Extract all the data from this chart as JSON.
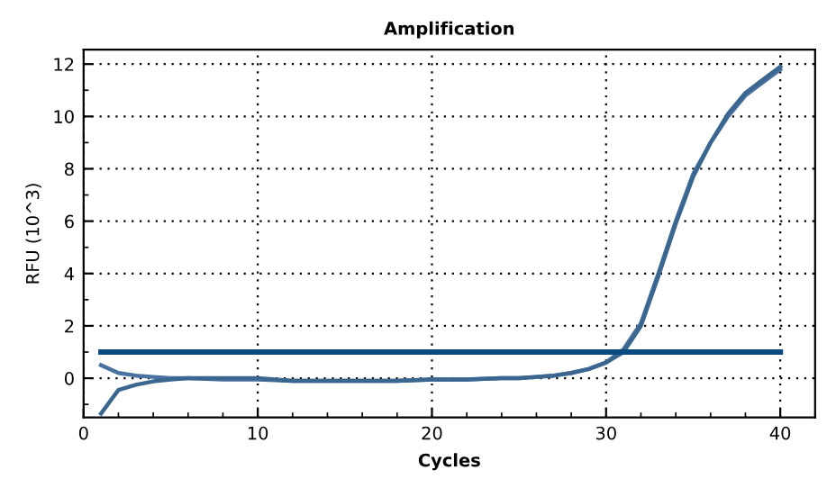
{
  "chart_data": {
    "type": "line",
    "title": "Amplification",
    "xlabel": "Cycles",
    "ylabel": "RFU (10^3)",
    "xlim": [
      0,
      42
    ],
    "ylim": [
      -1.5,
      12.55
    ],
    "xticks": [
      0,
      10,
      20,
      30,
      40
    ],
    "yticks": [
      0,
      2,
      4,
      6,
      8,
      10,
      12
    ],
    "grid": true,
    "marker": "none",
    "line_style": "solid",
    "series": [
      {
        "color": "#4a72a0",
        "x": [
          1,
          2,
          3,
          4,
          5,
          6,
          8,
          10,
          12,
          14,
          16,
          18,
          20,
          22,
          24,
          25,
          26,
          27,
          28,
          29,
          30,
          31,
          32,
          33,
          34,
          35,
          36,
          37,
          38,
          39,
          40
        ],
        "values": [
          0.5,
          0.2,
          0.1,
          0.05,
          0,
          0,
          -0.05,
          -0.05,
          -0.1,
          -0.1,
          -0.1,
          -0.1,
          -0.05,
          -0.05,
          0,
          0,
          0.05,
          0.1,
          0.2,
          0.35,
          0.6,
          1.1,
          2.1,
          4.0,
          6.0,
          7.8,
          9.0,
          10.0,
          10.8,
          11.3,
          11.8
        ]
      },
      {
        "color": "#3a6690",
        "x": [
          1,
          2,
          3,
          4,
          5,
          6,
          8,
          10,
          12,
          14,
          16,
          18,
          20,
          22,
          24,
          25,
          26,
          27,
          28,
          29,
          30,
          31,
          32,
          33,
          34,
          35,
          36,
          37,
          38,
          39,
          40
        ],
        "values": [
          -1.35,
          -0.45,
          -0.25,
          -0.12,
          -0.05,
          0,
          0,
          0,
          -0.1,
          -0.1,
          -0.1,
          -0.1,
          -0.05,
          -0.05,
          0,
          0,
          0.05,
          0.1,
          0.2,
          0.35,
          0.6,
          1.0,
          2.0,
          3.9,
          5.9,
          7.7,
          9.0,
          10.1,
          10.9,
          11.4,
          11.9
        ]
      },
      {
        "color": "#0a4a80",
        "x": [
          1,
          40
        ],
        "values": [
          1,
          1
        ]
      }
    ]
  }
}
